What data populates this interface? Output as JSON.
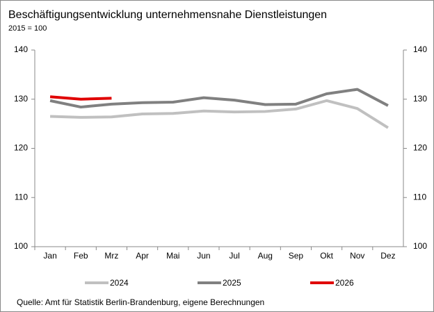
{
  "chart_data": {
    "type": "line",
    "title": "Beschäftigungsentwicklung unternehmensnahe Dienstleistungen",
    "subtitle": "2015 = 100",
    "source": "Quelle: Amt für Statistik Berlin-Brandenburg, eigene Berechnungen",
    "categories": [
      "Jan",
      "Feb",
      "Mrz",
      "Apr",
      "Mai",
      "Jun",
      "Jul",
      "Aug",
      "Sep",
      "Okt",
      "Nov",
      "Dez"
    ],
    "series": [
      {
        "name": "2024",
        "color": "#c0c0c0",
        "values": [
          126.5,
          126.3,
          126.4,
          127.0,
          127.1,
          127.6,
          127.4,
          127.5,
          128.0,
          129.7,
          128.1,
          124.2
        ]
      },
      {
        "name": "2025",
        "color": "#808080",
        "values": [
          129.7,
          128.4,
          129.0,
          129.3,
          129.4,
          130.3,
          129.8,
          128.9,
          129.0,
          131.1,
          132.0,
          128.7
        ]
      },
      {
        "name": "2026",
        "color": "#e00000",
        "values": [
          130.5,
          130.0,
          130.2,
          null,
          null,
          null,
          null,
          null,
          null,
          null,
          null,
          null
        ]
      }
    ],
    "ylim": [
      100,
      140
    ],
    "yticks": [
      100,
      110,
      120,
      130,
      140
    ],
    "y2lim": [
      100,
      140
    ],
    "y2ticks": [
      100,
      110,
      120,
      130,
      140
    ],
    "legend": "bottom",
    "grid": false
  }
}
